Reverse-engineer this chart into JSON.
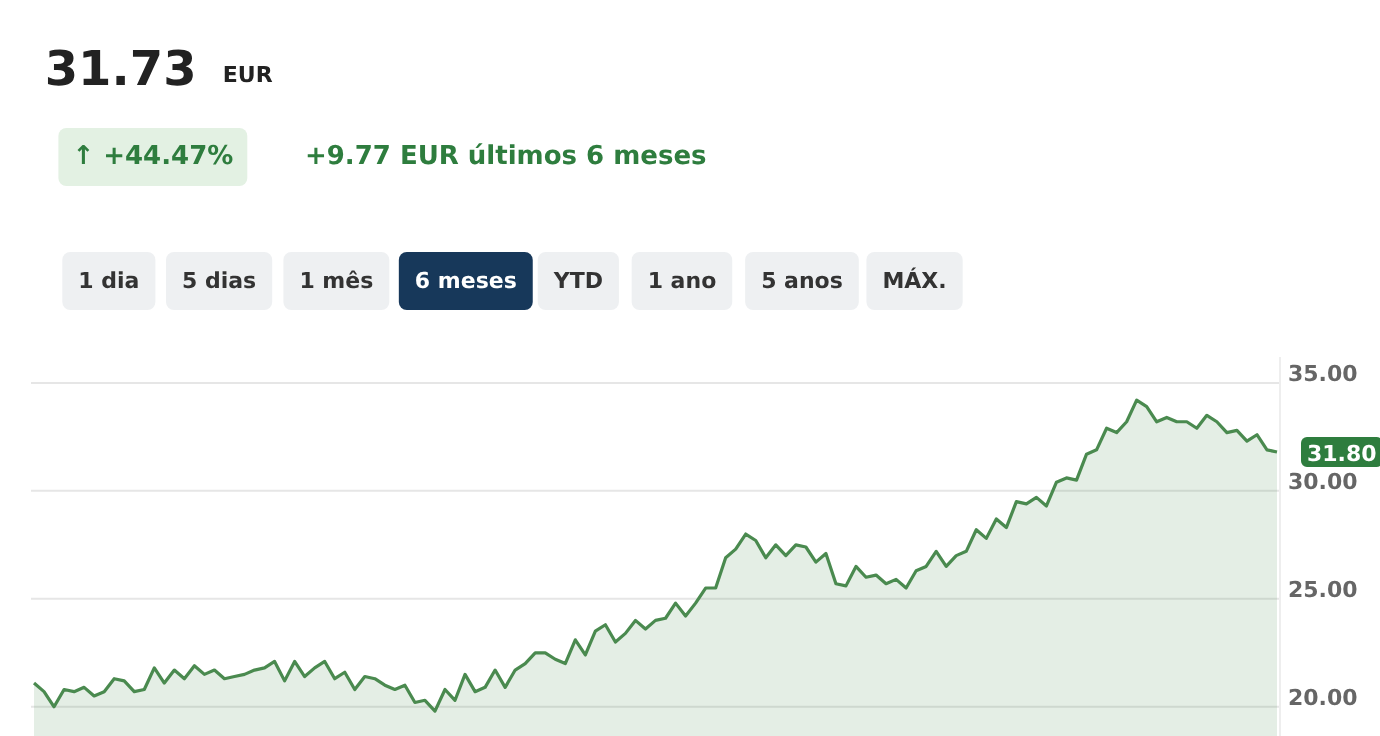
{
  "chart_data": {
    "type": "area",
    "title": "31.73",
    "subtitle": "EUR",
    "annotations": [
      "↑ +44.47%",
      "+9.77 EUR últimos 6 meses",
      "1 dia",
      "5 dias",
      "1 mês",
      "6 meses",
      "YTD",
      "1 ano",
      "5 anos",
      "MÁX.",
      "31.80"
    ],
    "categories": [
      null,
      null,
      null,
      null,
      null,
      null,
      null,
      null,
      null,
      null,
      null,
      null,
      null,
      null,
      null,
      null,
      null,
      null,
      null,
      null,
      null,
      null,
      null,
      null,
      null,
      null,
      null,
      null,
      null,
      null,
      null,
      null,
      null,
      null,
      null,
      null,
      null,
      null,
      null,
      null,
      null,
      null,
      null,
      null,
      null,
      null,
      null,
      null,
      null,
      null,
      null,
      null,
      null,
      null,
      null,
      null,
      null,
      null,
      null,
      null,
      null,
      null,
      null,
      null,
      null,
      null,
      null,
      null,
      null,
      null,
      null,
      null,
      null,
      null,
      null,
      null,
      null,
      null,
      null,
      null,
      null,
      null,
      null,
      null,
      null,
      null,
      null,
      null,
      null,
      null,
      null,
      null,
      null,
      null,
      null,
      null,
      null,
      null,
      null,
      null,
      null,
      null,
      null,
      null,
      null,
      null,
      null,
      null,
      null,
      null,
      null,
      null,
      null,
      null,
      null,
      null,
      null,
      null,
      null,
      null,
      null,
      null,
      null,
      null,
      null
    ],
    "series": [
      {
        "color": "#4a8a4f",
        "values": [
          21.1,
          20.7,
          20.0,
          20.8,
          20.7,
          20.9,
          20.5,
          20.7,
          21.3,
          21.2,
          20.7,
          20.8,
          21.8,
          21.1,
          21.7,
          21.3,
          21.9,
          21.5,
          21.7,
          21.3,
          21.4,
          21.5,
          21.7,
          21.8,
          22.1,
          21.2,
          22.1,
          21.4,
          21.8,
          22.1,
          21.3,
          21.6,
          20.8,
          21.4,
          21.3,
          21.0,
          20.8,
          21.0,
          20.2,
          20.3,
          19.8,
          20.8,
          20.3,
          21.5,
          20.7,
          20.9,
          21.7,
          20.9,
          21.7,
          22.0,
          22.5,
          22.5,
          22.2,
          22.0,
          23.1,
          22.4,
          23.5,
          23.8,
          23.0,
          23.4,
          24.0,
          23.6,
          24.0,
          24.1,
          24.8,
          24.2,
          24.8,
          25.5,
          25.5,
          26.9,
          27.3,
          28.0,
          27.7,
          26.9,
          27.5,
          27.0,
          27.5,
          27.4,
          26.7,
          27.1,
          25.7,
          25.6,
          26.5,
          26.0,
          26.1,
          25.7,
          25.9,
          25.5,
          26.3,
          26.5,
          27.2,
          26.5,
          27.0,
          27.2,
          28.2,
          27.8,
          28.7,
          28.3,
          29.5,
          29.4,
          29.7,
          29.3,
          30.4,
          30.6,
          30.5,
          31.7,
          31.9,
          32.9,
          32.7,
          33.2,
          34.2,
          33.9,
          33.2,
          33.4,
          33.2,
          33.2,
          32.9,
          33.5,
          33.2,
          32.7,
          32.8,
          32.3,
          32.6,
          31.9,
          31.8
        ]
      }
    ],
    "ylim": [
      18.6,
      36.2
    ],
    "yticks": [
      {
        "value": 20,
        "label": "20.00"
      },
      {
        "value": 25,
        "label": "25.00"
      },
      {
        "value": 30,
        "label": "30.00"
      },
      {
        "value": 35,
        "label": "35.00"
      }
    ],
    "grid": "y",
    "tick_labels": "y"
  }
}
